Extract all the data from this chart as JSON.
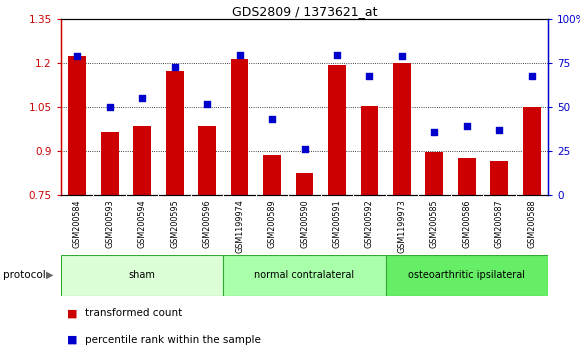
{
  "title": "GDS2809 / 1373621_at",
  "samples": [
    "GSM200584",
    "GSM200593",
    "GSM200594",
    "GSM200595",
    "GSM200596",
    "GSM1199974",
    "GSM200589",
    "GSM200590",
    "GSM200591",
    "GSM200592",
    "GSM1199973",
    "GSM200585",
    "GSM200586",
    "GSM200587",
    "GSM200588"
  ],
  "bar_values": [
    1.225,
    0.965,
    0.985,
    1.175,
    0.985,
    1.215,
    0.885,
    0.825,
    1.195,
    1.055,
    1.2,
    0.895,
    0.875,
    0.865,
    1.05
  ],
  "scatter_values": [
    79,
    50,
    55,
    73,
    52,
    80,
    43,
    26,
    80,
    68,
    79,
    36,
    39,
    37,
    68
  ],
  "bar_color": "#cc0000",
  "scatter_color": "#0000cc",
  "ylim_left": [
    0.75,
    1.35
  ],
  "ylim_right": [
    0,
    100
  ],
  "yticks_left": [
    0.75,
    0.9,
    1.05,
    1.2,
    1.35
  ],
  "ytick_labels_left": [
    "0.75",
    "0.9",
    "1.05",
    "1.2",
    "1.35"
  ],
  "yticks_right": [
    0,
    25,
    50,
    75,
    100
  ],
  "ytick_labels_right": [
    "0",
    "25",
    "50",
    "75",
    "100%"
  ],
  "grid_lines": [
    0.9,
    1.05,
    1.2
  ],
  "groups": [
    {
      "label": "sham",
      "start": 0,
      "end": 5
    },
    {
      "label": "normal contralateral",
      "start": 5,
      "end": 10
    },
    {
      "label": "osteoarthritic ipsilateral",
      "start": 10,
      "end": 15
    }
  ],
  "group_colors": [
    "#ddffd8",
    "#aaffaa",
    "#66ee66"
  ],
  "group_border_color": "#33aa33",
  "protocol_label": "protocol",
  "legend_bar_label": "transformed count",
  "legend_scatter_label": "percentile rank within the sample",
  "tick_area_color": "#cccccc",
  "tick_border_color": "#888888",
  "background_plot": "#ffffff"
}
